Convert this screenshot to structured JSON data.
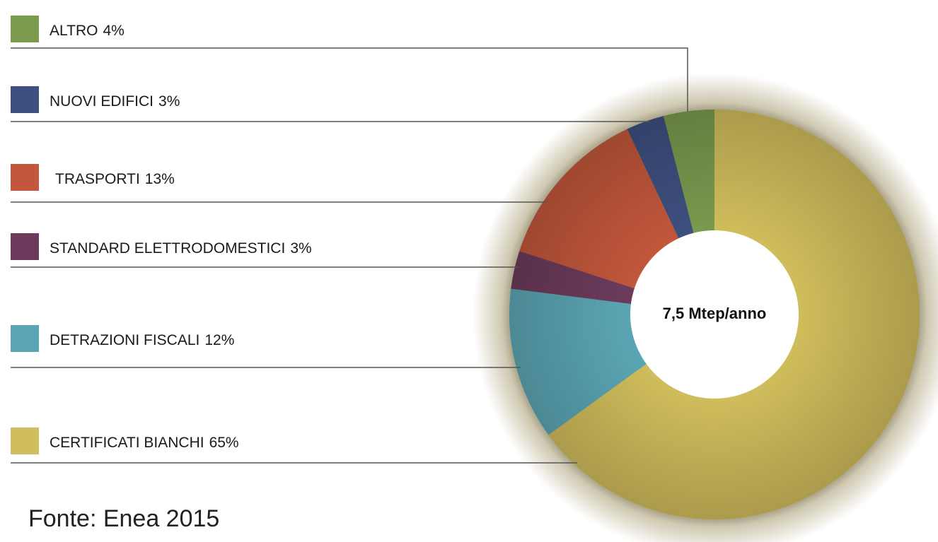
{
  "chart_data": {
    "type": "donut",
    "categories": [
      "ALTRO",
      "NUOVI EDIFICI",
      "TRASPORTI",
      "STANDARD ELETTRODOMESTICI",
      "DETRAZIONI FISCALI",
      "CERTIFICATI BIANCHI"
    ],
    "values": [
      4,
      3,
      13,
      3,
      12,
      65
    ],
    "value_labels": [
      "4%",
      "3%",
      "13%",
      "3%",
      "12%",
      "65%"
    ],
    "colors": [
      "#7a9a4e",
      "#3e5080",
      "#c2573b",
      "#6c3b5c",
      "#5ba6b4",
      "#d0bd5c"
    ],
    "center_label": "7,5 Mtep/anno",
    "source": "Fonte: Enea 2015"
  }
}
